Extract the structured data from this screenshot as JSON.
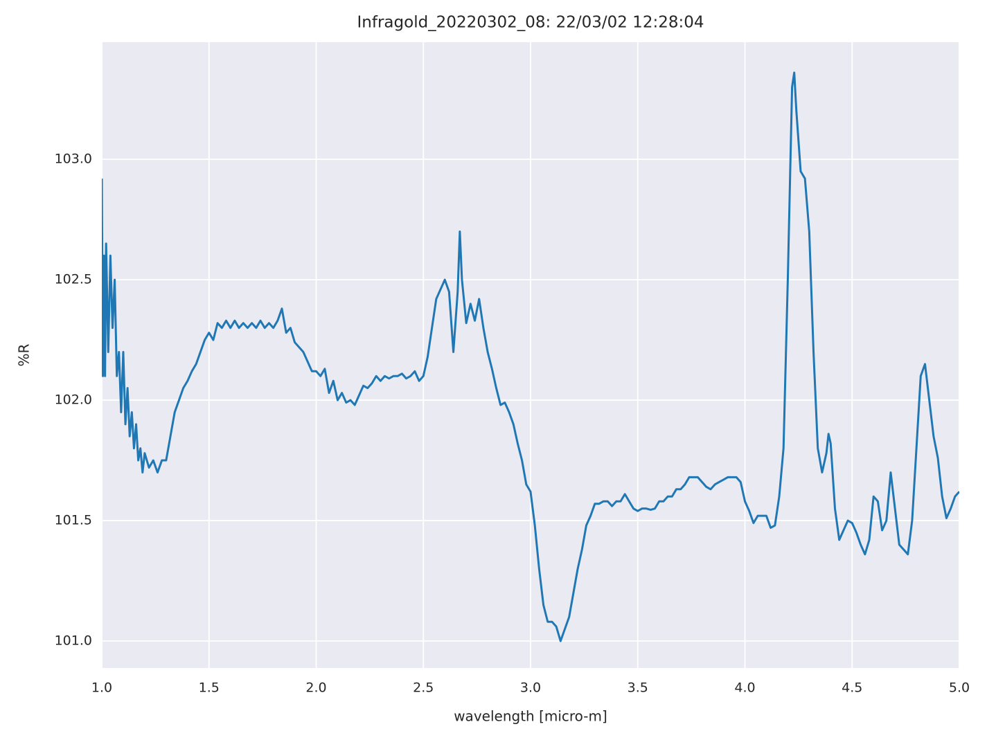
{
  "chart_data": {
    "type": "line",
    "title": "Infragold_20220302_08:  22/03/02 12:28:04",
    "xlabel": "wavelength [micro-m]",
    "ylabel": "%R",
    "color": "#1f77b4",
    "grid": true,
    "background": "#eaeaf2",
    "xlim": [
      1.0,
      5.0
    ],
    "ylim": [
      100.888,
      103.486
    ],
    "xticks": [
      {
        "value": 1.0,
        "label": "1.0"
      },
      1.5,
      {
        "value": 2.0,
        "label": "2.0"
      },
      2.5,
      {
        "value": 3.0,
        "label": "3.0"
      },
      3.5,
      {
        "value": 4.0,
        "label": "4.0"
      },
      4.5,
      {
        "value": 5.0,
        "label": "5.0"
      }
    ],
    "yticks": [
      {
        "value": 101.0,
        "label": "101.0"
      },
      101.5,
      {
        "value": 102.0,
        "label": "102.0"
      },
      102.5,
      {
        "value": 103.0,
        "label": "103.0"
      }
    ],
    "x": [
      1.0,
      1.005,
      1.01,
      1.015,
      1.02,
      1.03,
      1.04,
      1.05,
      1.06,
      1.07,
      1.08,
      1.09,
      1.1,
      1.11,
      1.12,
      1.13,
      1.14,
      1.15,
      1.16,
      1.17,
      1.18,
      1.19,
      1.2,
      1.22,
      1.24,
      1.26,
      1.28,
      1.3,
      1.32,
      1.34,
      1.36,
      1.38,
      1.4,
      1.42,
      1.44,
      1.46,
      1.48,
      1.5,
      1.52,
      1.54,
      1.56,
      1.58,
      1.6,
      1.62,
      1.64,
      1.66,
      1.68,
      1.7,
      1.72,
      1.74,
      1.76,
      1.78,
      1.8,
      1.82,
      1.84,
      1.86,
      1.88,
      1.9,
      1.92,
      1.94,
      1.96,
      1.98,
      2.0,
      2.02,
      2.04,
      2.06,
      2.08,
      2.1,
      2.12,
      2.14,
      2.16,
      2.18,
      2.2,
      2.22,
      2.24,
      2.26,
      2.28,
      2.3,
      2.32,
      2.34,
      2.36,
      2.38,
      2.4,
      2.42,
      2.44,
      2.46,
      2.48,
      2.5,
      2.52,
      2.54,
      2.56,
      2.58,
      2.6,
      2.62,
      2.64,
      2.66,
      2.67,
      2.68,
      2.7,
      2.72,
      2.74,
      2.76,
      2.78,
      2.8,
      2.82,
      2.84,
      2.86,
      2.88,
      2.9,
      2.92,
      2.94,
      2.96,
      2.98,
      3.0,
      3.02,
      3.04,
      3.06,
      3.08,
      3.1,
      3.12,
      3.14,
      3.16,
      3.18,
      3.2,
      3.22,
      3.24,
      3.26,
      3.28,
      3.3,
      3.32,
      3.34,
      3.36,
      3.38,
      3.4,
      3.42,
      3.44,
      3.46,
      3.48,
      3.5,
      3.52,
      3.54,
      3.56,
      3.58,
      3.6,
      3.62,
      3.64,
      3.66,
      3.68,
      3.7,
      3.72,
      3.74,
      3.76,
      3.78,
      3.8,
      3.82,
      3.84,
      3.86,
      3.88,
      3.9,
      3.92,
      3.94,
      3.96,
      3.98,
      4.0,
      4.02,
      4.04,
      4.06,
      4.08,
      4.1,
      4.12,
      4.14,
      4.16,
      4.18,
      4.2,
      4.22,
      4.23,
      4.24,
      4.26,
      4.28,
      4.3,
      4.32,
      4.34,
      4.36,
      4.38,
      4.39,
      4.4,
      4.42,
      4.44,
      4.46,
      4.48,
      4.5,
      4.52,
      4.54,
      4.56,
      4.58,
      4.6,
      4.62,
      4.64,
      4.66,
      4.68,
      4.7,
      4.72,
      4.74,
      4.76,
      4.78,
      4.8,
      4.82,
      4.84,
      4.86,
      4.88,
      4.9,
      4.92,
      4.94,
      4.96,
      4.98,
      5.0
    ],
    "values": [
      102.92,
      102.1,
      102.6,
      102.1,
      102.65,
      102.2,
      102.6,
      102.3,
      102.5,
      102.1,
      102.2,
      101.95,
      102.2,
      101.9,
      102.05,
      101.85,
      101.95,
      101.8,
      101.9,
      101.75,
      101.8,
      101.7,
      101.78,
      101.72,
      101.75,
      101.7,
      101.75,
      101.75,
      101.85,
      101.95,
      102.0,
      102.05,
      102.08,
      102.12,
      102.15,
      102.2,
      102.25,
      102.28,
      102.25,
      102.32,
      102.3,
      102.33,
      102.3,
      102.33,
      102.3,
      102.32,
      102.3,
      102.32,
      102.3,
      102.33,
      102.3,
      102.32,
      102.3,
      102.33,
      102.38,
      102.28,
      102.3,
      102.24,
      102.22,
      102.2,
      102.16,
      102.12,
      102.12,
      102.1,
      102.13,
      102.03,
      102.08,
      102.0,
      102.03,
      101.99,
      102.0,
      101.98,
      102.02,
      102.06,
      102.05,
      102.07,
      102.1,
      102.08,
      102.1,
      102.09,
      102.1,
      102.1,
      102.11,
      102.09,
      102.1,
      102.12,
      102.08,
      102.1,
      102.18,
      102.3,
      102.42,
      102.46,
      102.5,
      102.45,
      102.2,
      102.45,
      102.7,
      102.5,
      102.32,
      102.4,
      102.33,
      102.42,
      102.3,
      102.2,
      102.13,
      102.05,
      101.98,
      101.99,
      101.95,
      101.9,
      101.82,
      101.75,
      101.65,
      101.62,
      101.48,
      101.3,
      101.15,
      101.08,
      101.08,
      101.06,
      101.0,
      101.05,
      101.1,
      101.2,
      101.3,
      101.38,
      101.48,
      101.52,
      101.57,
      101.57,
      101.58,
      101.58,
      101.56,
      101.58,
      101.58,
      101.61,
      101.58,
      101.55,
      101.54,
      101.55,
      101.55,
      101.545,
      101.55,
      101.58,
      101.58,
      101.6,
      101.6,
      101.63,
      101.63,
      101.65,
      101.68,
      101.68,
      101.68,
      101.66,
      101.64,
      101.63,
      101.65,
      101.66,
      101.67,
      101.68,
      101.68,
      101.68,
      101.66,
      101.58,
      101.54,
      101.49,
      101.52,
      101.52,
      101.52,
      101.47,
      101.48,
      101.6,
      101.8,
      102.5,
      103.3,
      103.36,
      103.2,
      102.95,
      102.92,
      102.7,
      102.2,
      101.8,
      101.7,
      101.78,
      101.86,
      101.82,
      101.55,
      101.42,
      101.46,
      101.5,
      101.49,
      101.45,
      101.4,
      101.36,
      101.42,
      101.6,
      101.58,
      101.46,
      101.5,
      101.7,
      101.55,
      101.4,
      101.38,
      101.36,
      101.5,
      101.8,
      102.1,
      102.15,
      102.0,
      101.85,
      101.76,
      101.6,
      101.51,
      101.55,
      101.6,
      101.62
    ]
  }
}
